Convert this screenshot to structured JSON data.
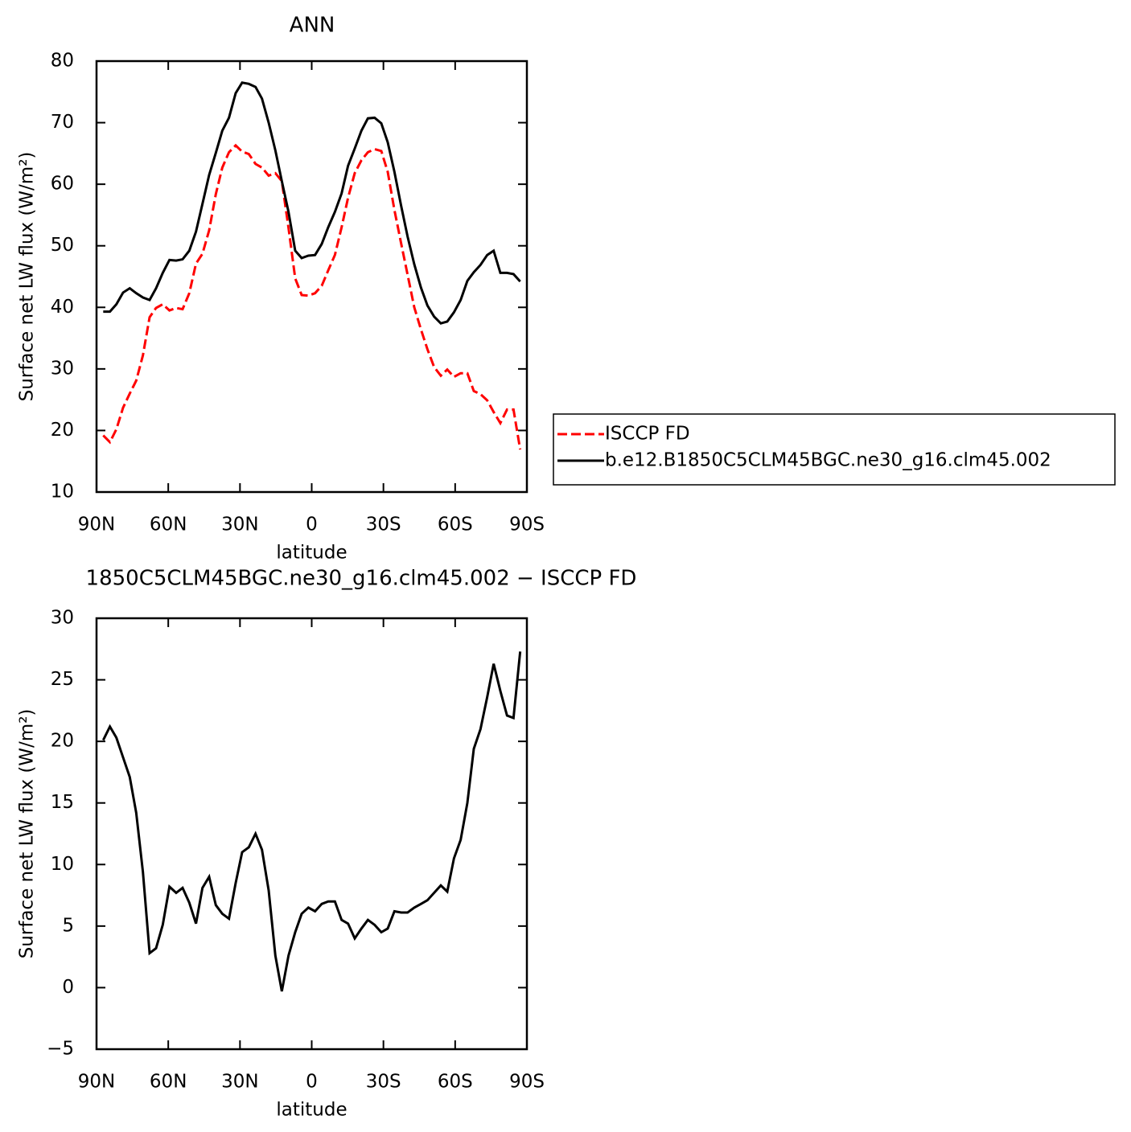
{
  "chart_data": [
    {
      "type": "line",
      "title": "ANN",
      "xlabel": "latitude",
      "ylabel": "Surface net LW flux (W/m²)",
      "x": [
        87.2,
        84.4,
        81.7,
        78.9,
        76.1,
        73.4,
        70.6,
        67.8,
        65.1,
        62.3,
        59.5,
        56.7,
        54.0,
        51.2,
        48.4,
        45.7,
        42.9,
        40.1,
        37.4,
        34.6,
        31.8,
        29.1,
        26.3,
        23.5,
        20.8,
        18.0,
        15.2,
        12.5,
        9.7,
        6.9,
        4.2,
        1.4,
        -1.4,
        -4.2,
        -6.9,
        -9.7,
        -12.5,
        -15.2,
        -18.0,
        -20.8,
        -23.5,
        -26.3,
        -29.1,
        -31.8,
        -34.6,
        -37.4,
        -40.1,
        -42.9,
        -45.7,
        -48.4,
        -51.2,
        -54.0,
        -56.7,
        -59.5,
        -62.3,
        -65.1,
        -67.8,
        -70.6,
        -73.4,
        -76.1,
        -78.9,
        -81.7,
        -84.4,
        -87.2
      ],
      "series": [
        {
          "name": "ISCCP FD",
          "color": "#ff0000",
          "dashed": true,
          "values": [
            19.2,
            18.1,
            20.2,
            23.7,
            26.0,
            28.1,
            32.2,
            38.4,
            39.9,
            40.5,
            39.5,
            39.9,
            39.7,
            42.3,
            47.1,
            48.7,
            52.5,
            58.4,
            62.7,
            65.2,
            66.3,
            65.3,
            64.9,
            63.3,
            62.7,
            61.4,
            61.8,
            60.5,
            52.9,
            44.7,
            42.0,
            41.9,
            42.3,
            43.5,
            46.0,
            48.5,
            53.0,
            57.8,
            61.8,
            63.9,
            65.2,
            65.7,
            65.4,
            62.0,
            55.8,
            50.4,
            45.3,
            40.0,
            36.4,
            33.2,
            30.3,
            28.9,
            29.9,
            28.7,
            29.3,
            29.3,
            26.4,
            25.9,
            24.9,
            23.0,
            21.2,
            23.4,
            23.4,
            16.9
          ]
        },
        {
          "name": "b.e12.B1850C5CLM45BGC.ne30_g16.clm45.002",
          "color": "#000000",
          "dashed": false,
          "values": [
            39.3,
            39.3,
            40.5,
            42.4,
            43.1,
            42.3,
            41.6,
            41.2,
            43.1,
            45.6,
            47.7,
            47.6,
            47.8,
            49.2,
            52.3,
            56.8,
            61.5,
            65.1,
            68.7,
            70.8,
            74.8,
            76.5,
            76.3,
            75.8,
            73.9,
            70.0,
            65.5,
            60.5,
            55.5,
            49.2,
            48.0,
            48.4,
            48.5,
            50.3,
            53.0,
            55.5,
            58.5,
            63.0,
            65.8,
            68.7,
            70.7,
            70.8,
            69.9,
            66.8,
            62.0,
            56.5,
            51.5,
            47.0,
            43.2,
            40.3,
            38.5,
            37.4,
            37.7,
            39.2,
            41.2,
            44.3,
            45.7,
            46.9,
            48.5,
            49.2,
            45.6,
            45.6,
            45.4,
            44.2
          ]
        }
      ],
      "xlim": [
        90,
        -90
      ],
      "xticks": [
        {
          "value": 90,
          "label": "90N"
        },
        {
          "value": 60,
          "label": "60N"
        },
        {
          "value": 30,
          "label": "30N"
        },
        0,
        {
          "value": -30,
          "label": "30S"
        },
        {
          "value": -60,
          "label": "60S"
        },
        {
          "value": -90,
          "label": "90S"
        }
      ],
      "ylim": [
        10,
        80
      ],
      "yticks": [
        10,
        20,
        30,
        40,
        50,
        60,
        70,
        80
      ],
      "legend": "right"
    },
    {
      "type": "line",
      "title": "1850C5CLM45BGC.ne30_g16.clm45.002 − ISCCP FD",
      "xlabel": "latitude",
      "ylabel": "Surface net LW flux (W/m²)",
      "x": [
        87.2,
        84.4,
        81.7,
        78.9,
        76.1,
        73.4,
        70.6,
        67.8,
        65.1,
        62.3,
        59.5,
        56.7,
        54.0,
        51.2,
        48.4,
        45.7,
        42.9,
        40.1,
        37.4,
        34.6,
        31.8,
        29.1,
        26.3,
        23.5,
        20.8,
        18.0,
        15.2,
        12.5,
        9.7,
        6.9,
        4.2,
        1.4,
        -1.4,
        -4.2,
        -6.9,
        -9.7,
        -12.5,
        -15.2,
        -18.0,
        -20.8,
        -23.5,
        -26.3,
        -29.1,
        -31.8,
        -34.6,
        -37.4,
        -40.1,
        -42.9,
        -45.7,
        -48.4,
        -51.2,
        -54.0,
        -56.7,
        -59.5,
        -62.3,
        -65.1,
        -67.8,
        -70.6,
        -73.4,
        -76.1,
        -78.9,
        -81.7,
        -84.4,
        -87.2
      ],
      "series": [
        {
          "color": "#000000",
          "dashed": false,
          "values": [
            20.1,
            21.2,
            20.3,
            18.7,
            17.1,
            14.2,
            9.4,
            2.8,
            3.2,
            5.1,
            8.2,
            7.7,
            8.1,
            6.9,
            5.2,
            8.1,
            9.0,
            6.7,
            6.0,
            5.6,
            8.5,
            11.0,
            11.4,
            12.5,
            11.2,
            7.9,
            2.6,
            -0.3,
            2.6,
            4.5,
            6.0,
            6.5,
            6.2,
            6.8,
            7.0,
            7.0,
            5.5,
            5.2,
            4.0,
            4.8,
            5.5,
            5.1,
            4.5,
            4.8,
            6.2,
            6.1,
            6.1,
            6.5,
            6.8,
            7.1,
            7.7,
            8.3,
            7.8,
            10.5,
            12.0,
            15.0,
            19.4,
            21.0,
            23.6,
            26.3,
            24.1,
            22.1,
            21.9,
            27.3
          ]
        }
      ],
      "xlim": [
        90,
        -90
      ],
      "xticks": [
        {
          "value": 90,
          "label": "90N"
        },
        {
          "value": 60,
          "label": "60N"
        },
        {
          "value": 30,
          "label": "30N"
        },
        0,
        {
          "value": -30,
          "label": "30S"
        },
        {
          "value": -60,
          "label": "60S"
        },
        {
          "value": -90,
          "label": "90S"
        }
      ],
      "ylim": [
        -5,
        30
      ],
      "yticks": [
        {
          "value": -5,
          "label": "−5"
        },
        0,
        5,
        10,
        15,
        20,
        25,
        30
      ]
    }
  ]
}
